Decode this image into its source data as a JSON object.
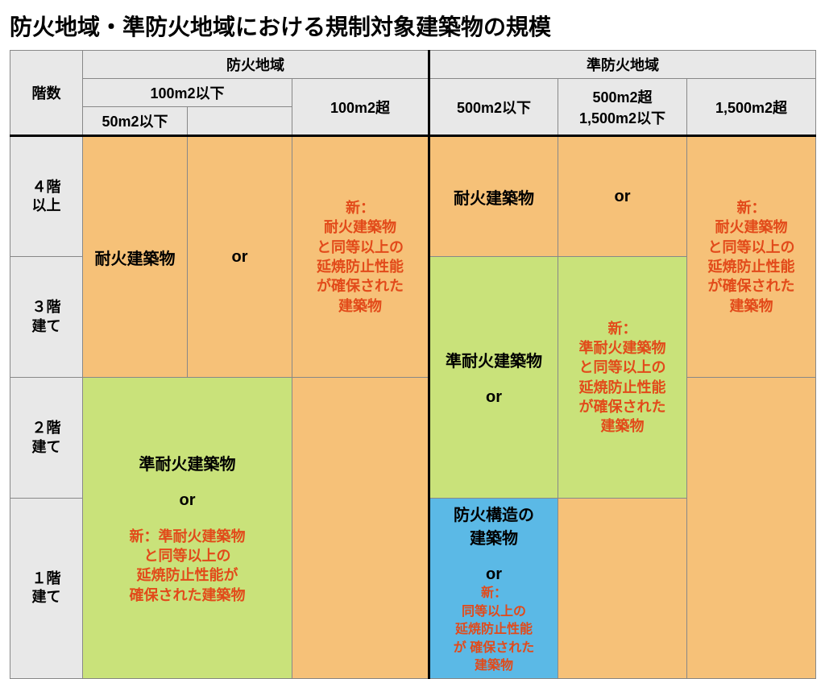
{
  "title": "防火地域・準防火地域における規制対象建築物の規模",
  "header": {
    "floors": "階数",
    "fire": "防火地域",
    "quasi": "準防火地域",
    "f_100u": "100m2以下",
    "f_100o": "100m2超",
    "f_50u": "50m2以下",
    "q_500u": "500m2以下",
    "q_500_1500": "500m2超\n1,500m2以下",
    "q_1500o": "1,500m2超"
  },
  "rows": {
    "r4": "４階\n以上",
    "r3": "３階\n建て",
    "r2": "２階\n建て",
    "r1": "１階\n建て"
  },
  "labels": {
    "taika": "耐火建築物",
    "juntaika": "準耐火建築物",
    "boka": "防火構造の\n建築物",
    "or": "or",
    "new_taika_multi": "新：\n耐火建築物\nと同等以上の\n延焼防止性能\nが確保された\n建築物",
    "new_juntaika_multi": "新：\n準耐火建築物\nと同等以上の\n延焼防止性能\nが確保された\n建築物",
    "new_juntaika_wide": "新：準耐火建築物\nと同等以上の\n延焼防止性能が\n確保された建築物",
    "new_blue": "新：\n同等以上の\n延焼防止性能\nが 確保された\n建築物"
  },
  "colors": {
    "orange": "#f6c178",
    "green": "#c9e27a",
    "blue": "#5bb9e6",
    "header": "#e8e8e8",
    "red": "#e24a1a",
    "black": "#000000"
  }
}
